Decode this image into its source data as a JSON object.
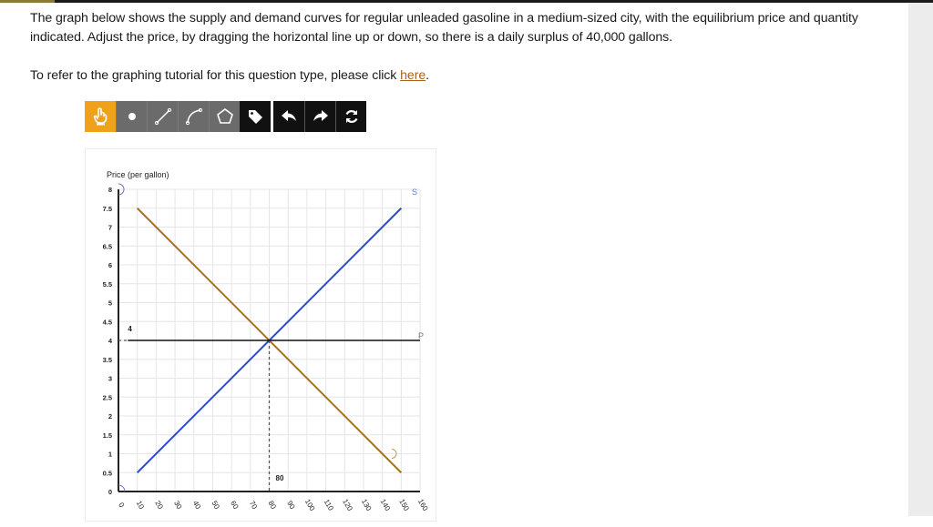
{
  "question": {
    "text": "The graph below shows the supply and demand curves for regular unleaded gasoline in a medium-sized city, with the equilibrium price and quantity indicated. Adjust the price, by dragging the horizontal line up or down, so there is a daily surplus of 40,000 gallons.",
    "tutorial_prefix": "To refer to the graphing tutorial for this question type, please click ",
    "tutorial_link": "here",
    "tutorial_suffix": "."
  },
  "toolbar": {
    "tools": [
      {
        "name": "pointer-tool",
        "icon": "hand-pointer-icon",
        "active": true
      },
      {
        "name": "point-tool",
        "icon": "dot-icon"
      },
      {
        "name": "line-tool",
        "icon": "line-segment-icon"
      },
      {
        "name": "curve-tool",
        "icon": "curve-icon"
      },
      {
        "name": "polygon-tool",
        "icon": "pentagon-icon"
      },
      {
        "name": "label-tool",
        "icon": "tag-icon"
      }
    ],
    "actions": [
      {
        "name": "undo-button",
        "icon": "undo-arrow-icon"
      },
      {
        "name": "redo-button",
        "icon": "redo-arrow-icon"
      },
      {
        "name": "reset-button",
        "icon": "refresh-icon"
      }
    ],
    "colors": {
      "active": "#f0a11c",
      "tool": "#6b6b6b",
      "action": "#111111"
    }
  },
  "chart_data": {
    "type": "line",
    "title": "",
    "ylabel": "Price (per gallon)",
    "xlabel": "",
    "xlim": [
      0,
      160
    ],
    "ylim": [
      0,
      8
    ],
    "x_ticks": [
      "0",
      "10",
      "20",
      "30",
      "40",
      "50",
      "60",
      "70",
      "80",
      "90",
      "100",
      "110",
      "120",
      "130",
      "140",
      "150",
      "160"
    ],
    "y_ticks": [
      "0",
      "0.5",
      "1",
      "1.5",
      "2",
      "2.5",
      "3",
      "3.5",
      "4",
      "4.5",
      "5",
      "5.5",
      "6",
      "6.5",
      "7",
      "7.5",
      "8"
    ],
    "grid": true,
    "series": [
      {
        "name": "D",
        "color": "#a8701c",
        "points": [
          [
            10,
            7.5
          ],
          [
            150,
            0.5
          ]
        ]
      },
      {
        "name": "S",
        "color": "#2a4bc7",
        "points": [
          [
            10,
            0.5
          ],
          [
            150,
            7.5
          ]
        ]
      },
      {
        "name": "P",
        "color": "#111111",
        "points": [
          [
            0,
            4
          ],
          [
            160,
            4
          ]
        ],
        "type": "horizontal-draggable"
      }
    ],
    "equilibrium": {
      "price": 4,
      "quantity": 80,
      "price_label": "4",
      "quantity_label": "80"
    },
    "labels": {
      "demand": "D",
      "supply": "S",
      "price_line": "P"
    }
  }
}
